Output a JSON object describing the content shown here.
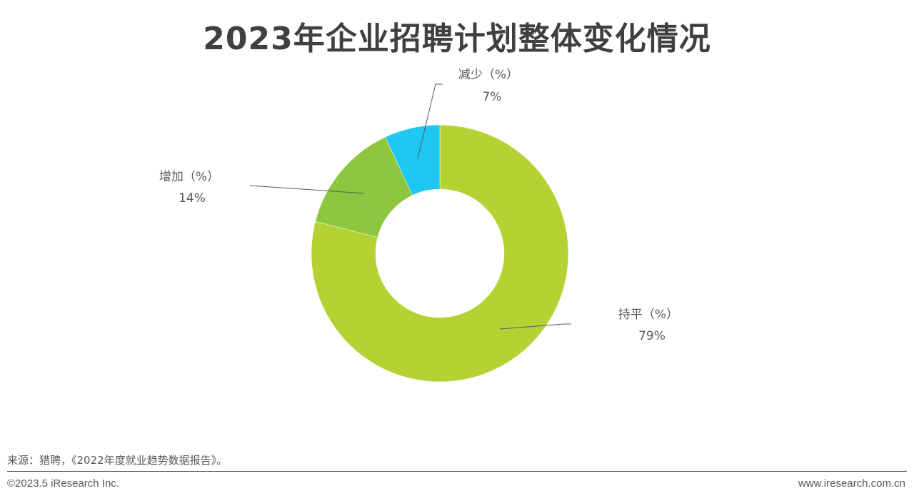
{
  "chart_data": {
    "type": "pie",
    "donut": true,
    "title": "2023年企业招聘计划整体变化情况",
    "start": "top",
    "direction": "clockwise",
    "slices": [
      {
        "label": "持平（%）",
        "value": 79,
        "value_label": "79%",
        "color": "#B3D335"
      },
      {
        "label": "增加（%）",
        "value": 14,
        "value_label": "14%",
        "color": "#8DC63F"
      },
      {
        "label": "减少（%）",
        "value": 7,
        "value_label": "7%",
        "color": "#1FC8F0"
      }
    ]
  },
  "footer": {
    "source": "来源：猎聘，《2022年度就业趋势数据报告》。",
    "copyright": "©2023.5 iResearch Inc.",
    "website": "www.iresearch.com.cn"
  }
}
